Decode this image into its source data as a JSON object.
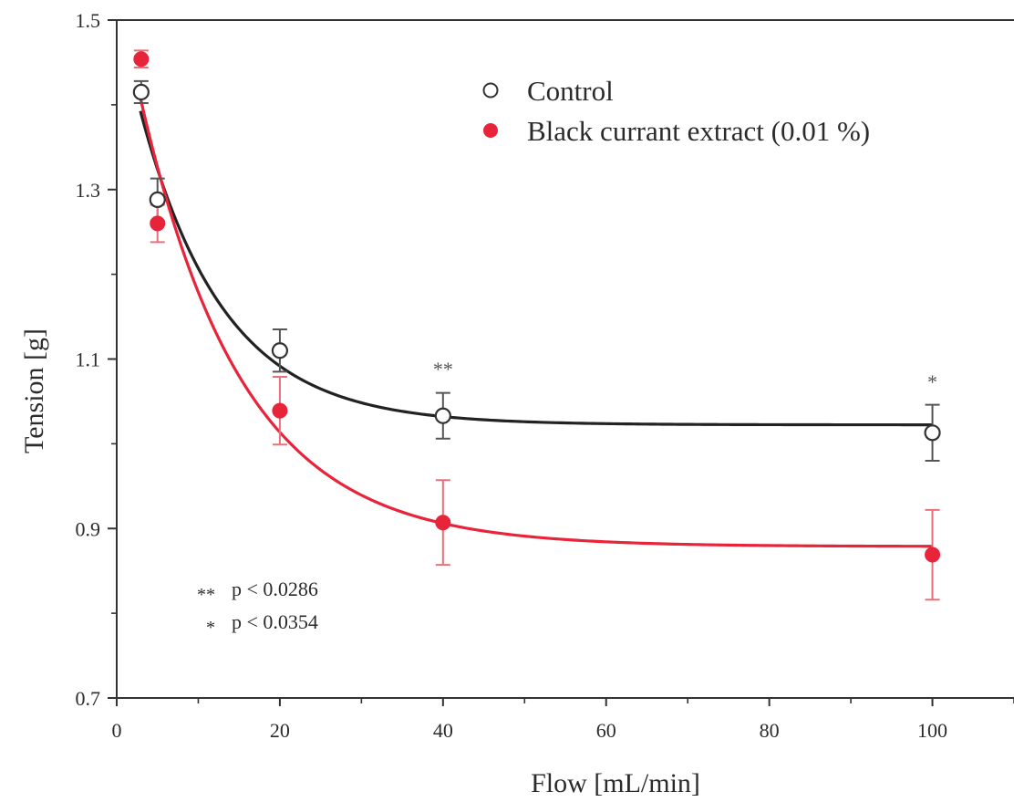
{
  "chart_data": {
    "type": "scatter",
    "title": "",
    "xlabel": "Flow [mL/min]",
    "ylabel": "Tension [g]",
    "xlim": [
      0,
      110
    ],
    "ylim": [
      0.7,
      1.5
    ],
    "x_ticks": [
      0,
      20,
      40,
      60,
      80,
      100
    ],
    "y_ticks": [
      0.7,
      0.9,
      1.1,
      1.3,
      1.5
    ],
    "x_tick_labels": [
      "0",
      "20",
      "40",
      "60",
      "80",
      "100"
    ],
    "y_tick_labels": [
      "0.7",
      "0.9",
      "1.1",
      "1.3",
      "1.5"
    ],
    "grid": false,
    "legend_position": "top-right",
    "series": [
      {
        "name": "Control",
        "marker": "open-circle",
        "color": "#222222",
        "x": [
          3,
          5,
          20,
          40,
          100
        ],
        "y": [
          1.415,
          1.288,
          1.11,
          1.033,
          1.013
        ],
        "error": [
          0.013,
          0.025,
          0.025,
          0.027,
          0.033
        ],
        "fit_curve": true
      },
      {
        "name": "Black currant extract (0.01 %)",
        "marker": "filled-circle",
        "color": "#e8243a",
        "x": [
          3,
          5,
          20,
          40,
          100
        ],
        "y": [
          1.454,
          1.26,
          1.039,
          0.907,
          0.869
        ],
        "error": [
          0.01,
          0.022,
          0.04,
          0.05,
          0.053
        ],
        "fit_curve": true
      }
    ],
    "significance": [
      {
        "x": 40,
        "label": "**"
      },
      {
        "x": 100,
        "label": "*"
      }
    ],
    "notes": [
      {
        "stars": "**",
        "text": "p < 0.0286"
      },
      {
        "stars": "*",
        "text": "p < 0.0354"
      }
    ]
  }
}
